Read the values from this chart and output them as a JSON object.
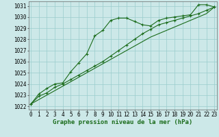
{
  "title": "Graphe pression niveau de la mer (hPa)",
  "xlabel_ticks": [
    0,
    1,
    2,
    3,
    4,
    5,
    6,
    7,
    8,
    9,
    10,
    11,
    12,
    13,
    14,
    15,
    16,
    17,
    18,
    19,
    20,
    21,
    22,
    23
  ],
  "ylim": [
    1021.7,
    1031.4
  ],
  "xlim": [
    -0.3,
    23.3
  ],
  "yticks": [
    1022,
    1023,
    1024,
    1025,
    1026,
    1027,
    1028,
    1029,
    1030,
    1031
  ],
  "bg_color": "#cce8e8",
  "grid_color": "#99cccc",
  "line_color": "#1a6b1a",
  "line1_x": [
    0,
    1,
    2,
    3,
    4,
    5,
    6,
    7,
    8,
    9,
    10,
    11,
    12,
    13,
    14,
    15,
    16,
    17,
    18,
    19,
    20,
    21,
    22,
    23
  ],
  "line1_y": [
    1022.2,
    1023.1,
    1023.6,
    1024.0,
    1024.1,
    1025.1,
    1025.9,
    1026.7,
    1028.3,
    1028.8,
    1029.7,
    1029.9,
    1029.9,
    1029.6,
    1029.3,
    1029.2,
    1029.7,
    1029.9,
    1030.0,
    1030.1,
    1030.2,
    1031.1,
    1031.1,
    1030.9
  ],
  "line2_x": [
    0,
    1,
    2,
    3,
    4,
    5,
    6,
    7,
    8,
    9,
    10,
    11,
    12,
    13,
    14,
    15,
    16,
    17,
    18,
    19,
    20,
    21,
    22,
    23
  ],
  "line2_y": [
    1022.2,
    1022.9,
    1023.2,
    1023.7,
    1024.0,
    1024.4,
    1024.8,
    1025.2,
    1025.6,
    1026.0,
    1026.5,
    1027.0,
    1027.5,
    1028.0,
    1028.5,
    1028.9,
    1029.3,
    1029.5,
    1029.7,
    1029.9,
    1030.1,
    1030.3,
    1030.6,
    1030.9
  ],
  "line3_x": [
    0,
    1,
    2,
    3,
    4,
    5,
    6,
    7,
    8,
    9,
    10,
    11,
    12,
    13,
    14,
    15,
    16,
    17,
    18,
    19,
    20,
    21,
    22,
    23
  ],
  "line3_y": [
    1022.2,
    1022.6,
    1023.0,
    1023.4,
    1023.8,
    1024.2,
    1024.6,
    1025.0,
    1025.4,
    1025.8,
    1026.2,
    1026.6,
    1027.0,
    1027.4,
    1027.8,
    1028.2,
    1028.5,
    1028.8,
    1029.1,
    1029.4,
    1029.7,
    1030.0,
    1030.3,
    1030.9
  ],
  "marker": "+",
  "marker_size": 3,
  "line_width": 0.8,
  "title_fontsize": 6.5,
  "tick_fontsize": 5.5
}
